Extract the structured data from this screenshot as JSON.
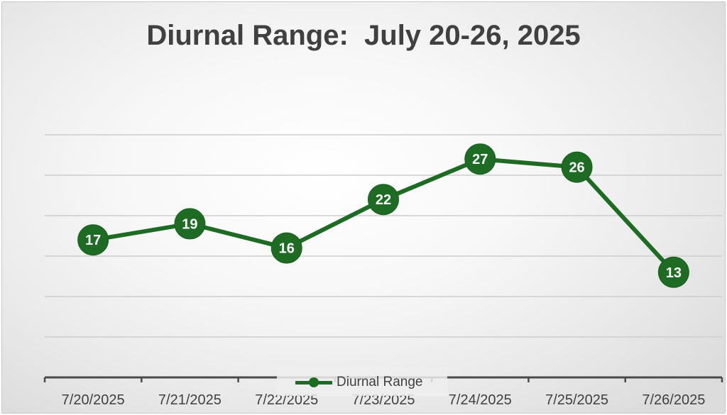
{
  "chart_data": {
    "type": "line",
    "title": "Diurnal Range:  July 20-26, 2025",
    "categories": [
      "7/20/2025",
      "7/21/2025",
      "7/22/2025",
      "7/23/2025",
      "7/24/2025",
      "7/25/2025",
      "7/26/2025"
    ],
    "series": [
      {
        "name": "Diurnal Range",
        "values": [
          17,
          19,
          16,
          22,
          27,
          26,
          13
        ]
      }
    ],
    "ylim": [
      0,
      30
    ],
    "grid": true,
    "legend_position": "bottom",
    "data_labels": true,
    "colors": {
      "series": "#1e6b24",
      "label_text": "#ffffff",
      "axis_text": "#404040"
    }
  }
}
